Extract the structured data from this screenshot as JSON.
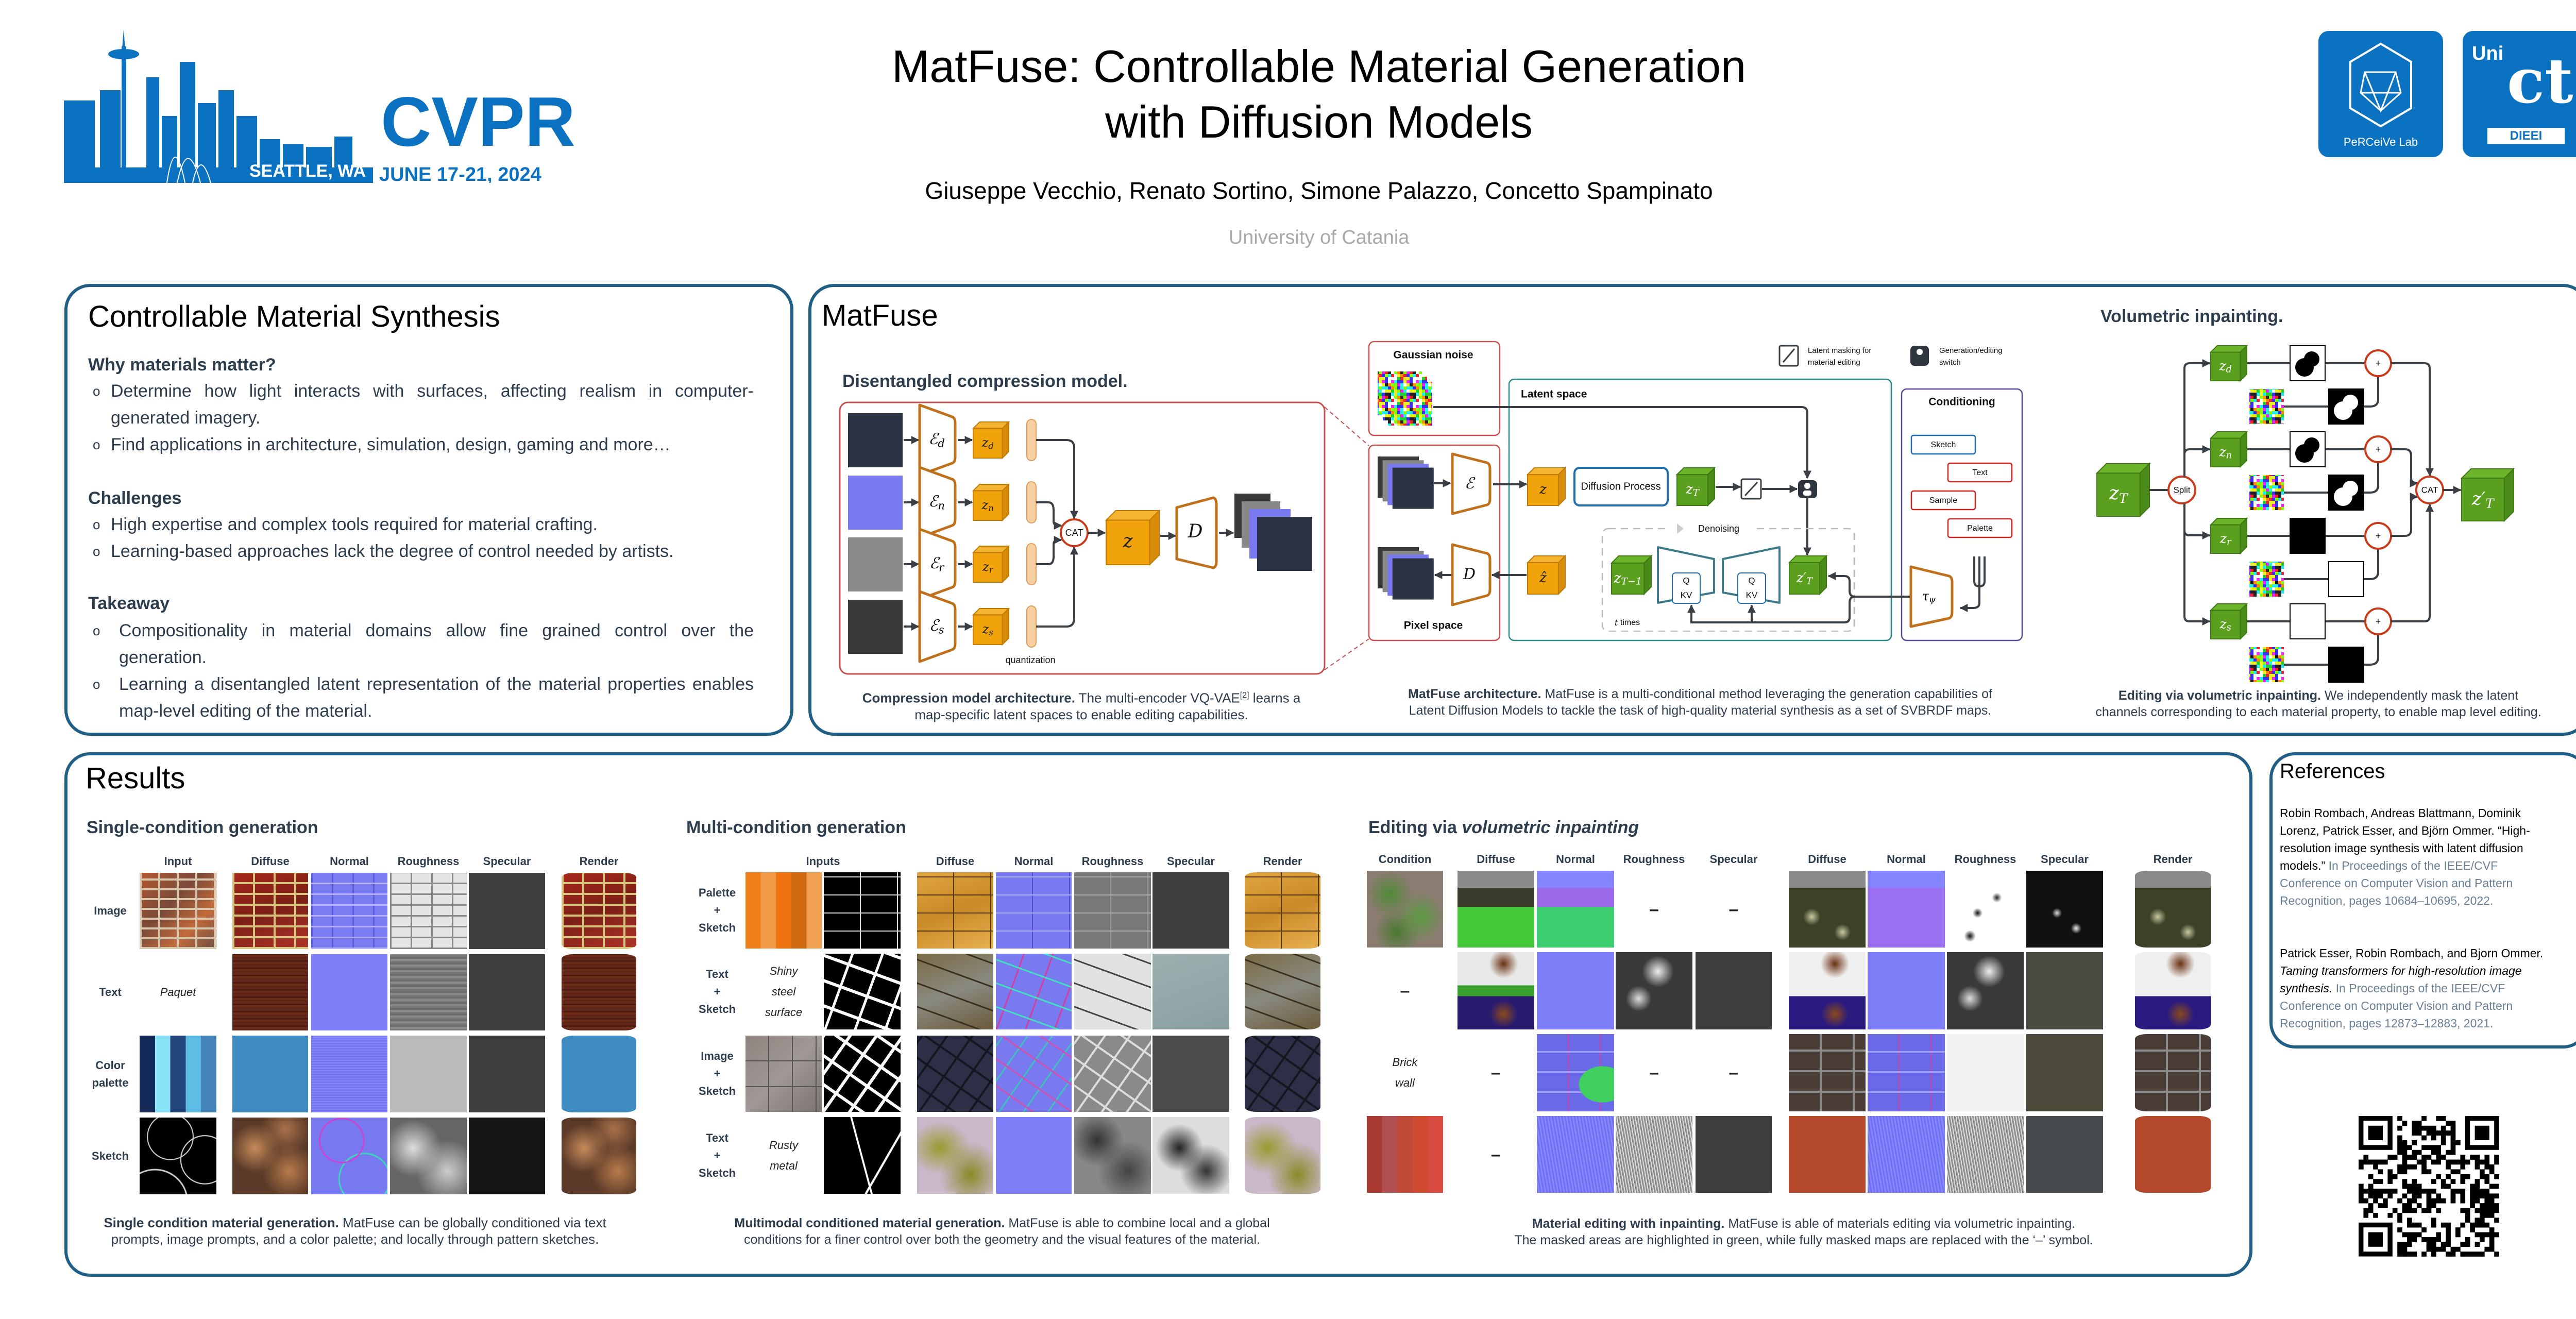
{
  "header": {
    "title_line1": "MatFuse: Controllable Material Generation",
    "title_line2": "with Diffusion Models",
    "authors": "Giuseppe Vecchio, Renato Sortino, Simone Palazzo, Concetto Spampinato",
    "affiliation": "University of Catania",
    "cvpr": {
      "name": "CVPR",
      "location": "SEATTLE, WA",
      "dates": "JUNE 17-21, 2024"
    },
    "logos": {
      "perceive": "PeRCeiVe Lab",
      "unict_top": "Uni",
      "unict_main": "ct",
      "unict_dept": "DIEEI"
    }
  },
  "intro": {
    "title": "Controllable Material Synthesis",
    "sections": [
      {
        "heading": "Why materials matter?",
        "bullets": [
          "Determine how light interacts with surfaces, affecting realism in computer-generated imagery.",
          "Find applications in architecture, simulation, design, gaming and more…"
        ]
      },
      {
        "heading": "Challenges",
        "bullets": [
          "High expertise and complex tools required for material crafting.",
          "Learning-based approaches lack the degree of control needed by artists."
        ]
      },
      {
        "heading": "Takeaway",
        "bullets": [
          "Compositionality in material domains allow fine grained control over the generation.",
          "Learning a disentangled latent representation of the material properties enables map-level editing of the material."
        ]
      }
    ],
    "bullet_symbol": "o"
  },
  "matfuse": {
    "title": "MatFuse",
    "compression": {
      "title": "Disentangled compression model.",
      "encoders": [
        {
          "base": "ℰ",
          "sub": "d"
        },
        {
          "base": "ℰ",
          "sub": "n"
        },
        {
          "base": "ℰ",
          "sub": "r"
        },
        {
          "base": "ℰ",
          "sub": "s"
        }
      ],
      "latents": [
        {
          "base": "z",
          "sub": "d"
        },
        {
          "base": "z",
          "sub": "n"
        },
        {
          "base": "z",
          "sub": "r"
        },
        {
          "base": "z",
          "sub": "s"
        }
      ],
      "cat": "CAT",
      "z": "z",
      "decoder": "D",
      "quantization": "quantization",
      "caption": {
        "bold": "Compression model architecture.",
        "line1": " The multi-encoder VQ-VAE",
        "ref": "[2]",
        "line1_end": " learns a",
        "line2": "map-specific latent spaces to enable editing capabilities."
      }
    },
    "architecture": {
      "gaussian_noise": "Gaussian noise",
      "pixel_space": "Pixel space",
      "latent_space": "Latent space",
      "conditioning": "Conditioning",
      "diffusion_process": "Diffusion Process",
      "denoising": "Denoising",
      "t_times": {
        "var": "t",
        "text": " times"
      },
      "encoder": "ℰ",
      "decoder": "D",
      "z": "z",
      "z_hat": "ẑ",
      "z_T": {
        "base": "z",
        "sub": "T"
      },
      "z_T_minus_1": {
        "base": "z",
        "sub": "T−1"
      },
      "z_T_prime": {
        "base": "z′",
        "sub": "T"
      },
      "tau": {
        "base": "τ",
        "sub": "ψ"
      },
      "q": "Q",
      "kv": "KV",
      "conditions": [
        "Sketch",
        "Text",
        "Sample",
        "Palette"
      ],
      "legend": {
        "mask_line1": "Latent masking for",
        "mask_line2": "material editing",
        "switch_line1": "Generation/editing",
        "switch_line2": "switch"
      },
      "caption": {
        "bold": "MatFuse architecture.",
        "line1": " MatFuse is a multi-conditional method leveraging the generation capabilities of",
        "line2": "Latent Diffusion Models to tackle the task of high-quality material synthesis as a set of SVBRDF maps."
      }
    },
    "volumetric": {
      "title": "Volumetric inpainting.",
      "z_T": {
        "base": "z",
        "sub": "T"
      },
      "split": "Split",
      "latents": [
        {
          "base": "z",
          "sub": "d"
        },
        {
          "base": "z",
          "sub": "n"
        },
        {
          "base": "z",
          "sub": "r"
        },
        {
          "base": "z",
          "sub": "s"
        }
      ],
      "plus": "+",
      "cat": "CAT",
      "z_T_prime": {
        "base": "z′",
        "sub": "T"
      },
      "caption": {
        "bold": "Editing via volumetric inpainting.",
        "line1": " We independently mask the latent",
        "line2": "channels corresponding to each material property, to enable map level editing."
      }
    }
  },
  "results": {
    "title": "Results",
    "single": {
      "title": "Single-condition generation",
      "columns": [
        "Input",
        "Diffuse",
        "Normal",
        "Roughness",
        "Specular",
        "Render"
      ],
      "rows": [
        [
          "Image"
        ],
        [
          "Text"
        ],
        [
          "Color",
          "palette"
        ],
        [
          "Sketch"
        ]
      ],
      "text_input": "Paquet",
      "caption": {
        "bold": "Single condition material generation.",
        "line1": " MatFuse  can be globally conditioned via text",
        "line2": "prompts, image prompts, and a color palette; and locally through pattern sketches."
      }
    },
    "multi": {
      "title": "Multi-condition generation",
      "columns": [
        "Inputs",
        "Diffuse",
        "Normal",
        "Roughness",
        "Specular",
        "Render"
      ],
      "rows": [
        [
          "Palette",
          "+",
          "Sketch"
        ],
        [
          "Text",
          "+",
          "Sketch"
        ],
        [
          "Image",
          "+",
          "Sketch"
        ],
        [
          "Text",
          "+",
          "Sketch"
        ]
      ],
      "text_inputs": [
        "Shiny steel surface",
        "Rusty metal"
      ],
      "caption": {
        "bold": "Multimodal conditioned material generation.",
        "line1": " MatFuse is able to combine local and a global",
        "line2": "conditions for a finer control over both the geometry and the visual features of the material."
      }
    },
    "editing": {
      "title_plain": "Editing via ",
      "title_italic": "volumetric inpainting",
      "columns": [
        "Condition",
        "Diffuse",
        "Normal",
        "Roughness",
        "Specular",
        "Diffuse",
        "Normal",
        "Roughness",
        "Specular",
        "Render"
      ],
      "masked_symbol": "–",
      "text_condition": "Brick wall",
      "caption": {
        "bold": "Material editing with inpainting.",
        "line1": " MatFuse is able of materials editing via volumetric inpainting.",
        "line2": "The masked areas are highlighted in green, while fully masked maps are replaced with the ‘–’ symbol."
      }
    }
  },
  "references": {
    "title": "References",
    "items": [
      {
        "authors": "Robin Rombach, Andreas Blattmann, Dominik Lorenz, Patrick Esser, and Björn Ommer. “High-resolution image synthesis with latent diffusion models.”",
        "title": "",
        "venue": " In Proceedings of the IEEE/CVF Conference on Computer Vision and Pattern Recognition, pages 10684–10695,  2022."
      },
      {
        "authors": "Patrick Esser, Robin Rombach, and Bjorn Ommer. ",
        "title": "Taming transformers for high-resolution image synthesis.",
        "venue": " In Proceedings of the IEEE/CVF Conference on Computer Vision and Pattern Recognition, pages 12873–12883, 2021."
      }
    ]
  },
  "colors": {
    "panel_border": "#1f5f85",
    "brand_blue": "#0b72c1",
    "text": "#2e3d4d",
    "latent_orange": "#f0a30a",
    "latent_green": "#5aa01e",
    "circle_red": "#c83a1a",
    "reference_venue": "#6b7f95"
  },
  "icons": {
    "qr_code": "qr-code",
    "mask": "pen-icon",
    "switch": "switch-icon"
  }
}
